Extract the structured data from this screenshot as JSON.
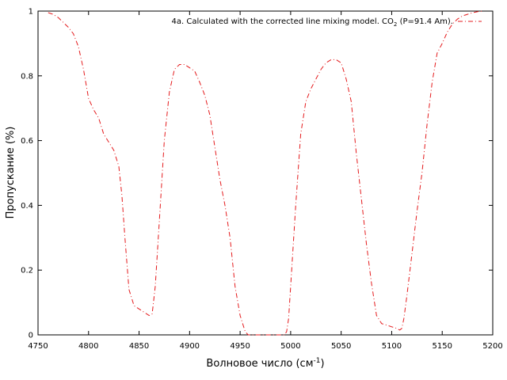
{
  "chart_data": {
    "type": "line",
    "xlabel": "Волновое число (см",
    "xlabel_sup": "-1",
    "xlabel_close": ")",
    "ylabel": "Пропускание (%)",
    "xlim": [
      4750,
      5200
    ],
    "ylim": [
      0,
      1
    ],
    "xticks": [
      "4750",
      "4800",
      "4850",
      "4900",
      "4950",
      "5000",
      "5050",
      "5100",
      "5150",
      "5200"
    ],
    "yticks": [
      "0",
      "0.2",
      "0.4",
      "0.6",
      "0.8",
      "1"
    ],
    "grid": false,
    "legend_position": "top-right",
    "legend_prefix": "4a. Calculated with the corrected line mixing model. CO",
    "legend_sub": "2",
    "legend_suffix": " (P=91.4 Am).",
    "colors": {
      "series": "#e41a1c",
      "axis": "#000000"
    },
    "series": [
      {
        "x": [
          4760,
          4765,
          4770,
          4775,
          4780,
          4785,
          4790,
          4795,
          4800,
          4805,
          4810,
          4815,
          4820,
          4825,
          4830,
          4833,
          4836,
          4840,
          4845,
          4850,
          4855,
          4860,
          4863,
          4866,
          4870,
          4875,
          4880,
          4885,
          4890,
          4895,
          4900,
          4905,
          4910,
          4915,
          4920,
          4925,
          4930,
          4935,
          4940,
          4945,
          4950,
          4955,
          4958,
          4961,
          4994,
          4996,
          4998,
          5000,
          5005,
          5010,
          5015,
          5020,
          5025,
          5030,
          5035,
          5040,
          5045,
          5050,
          5055,
          5060,
          5065,
          5070,
          5075,
          5080,
          5085,
          5090,
          5095,
          5100,
          5105,
          5108,
          5110,
          5112,
          5115,
          5120,
          5125,
          5130,
          5135,
          5140,
          5145,
          5150,
          5155,
          5160,
          5165,
          5170,
          5175,
          5180,
          5185,
          5190
        ],
        "values": [
          0.995,
          0.99,
          0.98,
          0.965,
          0.95,
          0.93,
          0.89,
          0.82,
          0.73,
          0.695,
          0.67,
          0.62,
          0.595,
          0.57,
          0.52,
          0.43,
          0.3,
          0.14,
          0.09,
          0.08,
          0.07,
          0.06,
          0.065,
          0.15,
          0.35,
          0.6,
          0.75,
          0.82,
          0.835,
          0.835,
          0.825,
          0.815,
          0.78,
          0.74,
          0.68,
          0.58,
          0.48,
          0.4,
          0.3,
          0.15,
          0.06,
          0.01,
          0.0,
          0.0,
          0.0,
          0.01,
          0.05,
          0.15,
          0.4,
          0.62,
          0.72,
          0.76,
          0.79,
          0.82,
          0.84,
          0.85,
          0.85,
          0.84,
          0.79,
          0.72,
          0.56,
          0.42,
          0.28,
          0.16,
          0.06,
          0.035,
          0.03,
          0.025,
          0.02,
          0.015,
          0.02,
          0.05,
          0.12,
          0.25,
          0.38,
          0.5,
          0.65,
          0.78,
          0.87,
          0.9,
          0.935,
          0.96,
          0.975,
          0.985,
          0.99,
          0.995,
          0.998,
          1.0
        ]
      }
    ]
  }
}
